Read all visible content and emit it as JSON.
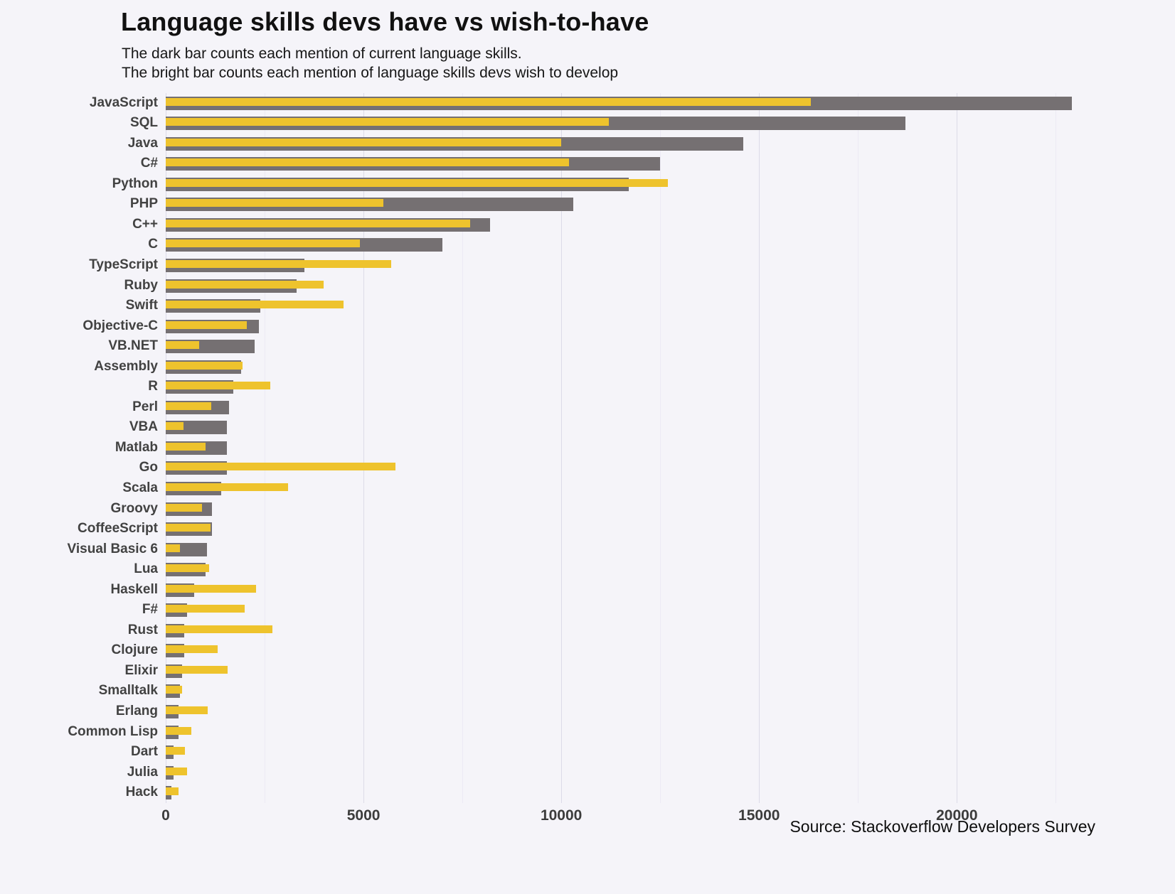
{
  "chart_data": {
    "type": "bar",
    "orientation": "horizontal",
    "title": "Language skills devs have vs wish-to-have",
    "subtitle_line1": "The dark bar counts each mention of current language skills.",
    "subtitle_line2": "The bright bar counts each mention of language skills devs wish to develop",
    "source": "Source: Stackoverflow Developers Survey",
    "xlabel": "",
    "ylabel": "",
    "xlim": [
      0,
      23500
    ],
    "x_ticks": [
      0,
      5000,
      10000,
      15000,
      20000
    ],
    "grid": "vertical-major-and-minor",
    "legend": "none",
    "series_meta": {
      "have": {
        "name": "current skills (dark bar)",
        "color": "#757072"
      },
      "wish": {
        "name": "wish to develop (bright bar)",
        "color": "#eec32d"
      }
    },
    "languages": [
      {
        "label": "JavaScript",
        "have": 22900,
        "wish": 16300
      },
      {
        "label": "SQL",
        "have": 18700,
        "wish": 11200
      },
      {
        "label": "Java",
        "have": 14600,
        "wish": 10000
      },
      {
        "label": "C#",
        "have": 12500,
        "wish": 10200
      },
      {
        "label": "Python",
        "have": 11700,
        "wish": 12700
      },
      {
        "label": "PHP",
        "have": 10300,
        "wish": 5500
      },
      {
        "label": "C++",
        "have": 8200,
        "wish": 7700
      },
      {
        "label": "C",
        "have": 7000,
        "wish": 4900
      },
      {
        "label": "TypeScript",
        "have": 3500,
        "wish": 5700
      },
      {
        "label": "Ruby",
        "have": 3300,
        "wish": 4000
      },
      {
        "label": "Swift",
        "have": 2400,
        "wish": 4500
      },
      {
        "label": "Objective-C",
        "have": 2350,
        "wish": 2050
      },
      {
        "label": "VB.NET",
        "have": 2250,
        "wish": 850
      },
      {
        "label": "Assembly",
        "have": 1900,
        "wish": 1950
      },
      {
        "label": "R",
        "have": 1700,
        "wish": 2650
      },
      {
        "label": "Perl",
        "have": 1600,
        "wish": 1150
      },
      {
        "label": "VBA",
        "have": 1550,
        "wish": 450
      },
      {
        "label": "Matlab",
        "have": 1550,
        "wish": 1000
      },
      {
        "label": "Go",
        "have": 1550,
        "wish": 5800
      },
      {
        "label": "Scala",
        "have": 1400,
        "wish": 3100
      },
      {
        "label": "Groovy",
        "have": 1160,
        "wish": 920
      },
      {
        "label": "CoffeeScript",
        "have": 1160,
        "wish": 1130
      },
      {
        "label": "Visual Basic 6",
        "have": 1040,
        "wish": 360
      },
      {
        "label": "Lua",
        "have": 1000,
        "wish": 1090
      },
      {
        "label": "Haskell",
        "have": 720,
        "wish": 2280
      },
      {
        "label": "F#",
        "have": 540,
        "wish": 2000
      },
      {
        "label": "Rust",
        "have": 460,
        "wish": 2700
      },
      {
        "label": "Clojure",
        "have": 460,
        "wish": 1320
      },
      {
        "label": "Elixir",
        "have": 410,
        "wish": 1560
      },
      {
        "label": "Smalltalk",
        "have": 360,
        "wish": 410
      },
      {
        "label": "Erlang",
        "have": 320,
        "wish": 1060
      },
      {
        "label": "Common Lisp",
        "have": 320,
        "wish": 650
      },
      {
        "label": "Dart",
        "have": 190,
        "wish": 480
      },
      {
        "label": "Julia",
        "have": 190,
        "wish": 540
      },
      {
        "label": "Hack",
        "have": 140,
        "wish": 320
      }
    ]
  }
}
